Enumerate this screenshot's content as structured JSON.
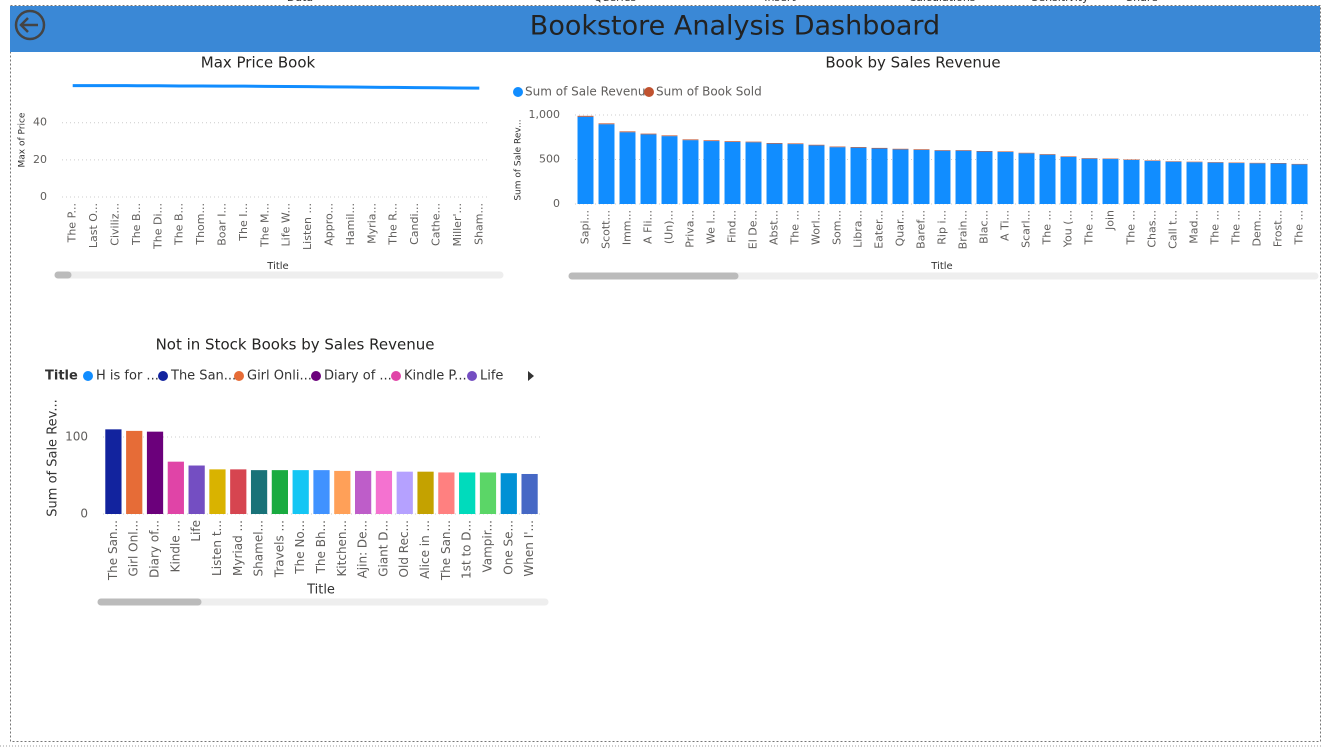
{
  "page_title": "Bookstore Analysis Dashboard",
  "ribbon": [
    "Data",
    "Queries",
    "Insert",
    "Calculations",
    "Sensitivity",
    "Share"
  ],
  "chart_data": [
    {
      "type": "line",
      "title": "Max Price Book",
      "x_label": "Title",
      "y_label": "Max of Price",
      "categories": [
        "The P...",
        "Last O...",
        "Civiliz...",
        "The B...",
        "The Di...",
        "The B...",
        "Thom...",
        "Boar I...",
        "The I...",
        "The M...",
        "Life W...",
        "Listen ...",
        "Appro...",
        "Hamil...",
        "Myria...",
        "The R...",
        "Candi...",
        "Cathe...",
        "Miller'...",
        "Sham..."
      ],
      "values": [
        60,
        60,
        60,
        59.9,
        59.9,
        59.8,
        59.8,
        59.7,
        59.7,
        59.6,
        59.5,
        59.4,
        59.3,
        59.2,
        59.1,
        59,
        58.9,
        58.8,
        58.7,
        58.6
      ],
      "color": "#118DFF",
      "ylim": [
        0,
        63
      ],
      "yticks": [
        0,
        20,
        40
      ],
      "grid": true
    },
    {
      "type": "stacked_bar",
      "title": "Book by Sales Revenue",
      "x_label": "Title",
      "y_label": "Sum of Sale Rev...",
      "categories": [
        "Sapi...",
        "Scott...",
        "Imm...",
        "A Fli...",
        "(Un)...",
        "Priva...",
        "We l...",
        "Find...",
        "El De...",
        "Abst...",
        "The ...",
        "Worl...",
        "Som...",
        "Libra...",
        "Eater...",
        "Quar...",
        "Baref...",
        "Rip i...",
        "Brain...",
        "Blac...",
        "A Ti...",
        "Scarl...",
        "The ...",
        "You (...",
        "The ...",
        "Join",
        "The ...",
        "Chas...",
        "Call t...",
        "Mad...",
        "The ...",
        "The ...",
        "Dem...",
        "Frost...",
        "The ..."
      ],
      "series": [
        {
          "name": "Sum of Sale Revenue",
          "color": "#118DFF",
          "values": [
            980,
            896,
            806,
            782,
            762,
            717,
            707,
            697,
            693,
            678,
            673,
            658,
            638,
            633,
            623,
            613,
            608,
            599,
            599,
            589,
            584,
            569,
            554,
            529,
            509,
            505,
            495,
            485,
            475,
            470,
            465,
            460,
            457,
            455,
            445
          ]
        },
        {
          "name": "Sum of Book Sold",
          "color": "#C0522F",
          "values": [
            10,
            9,
            9,
            8,
            8,
            8,
            8,
            8,
            7,
            7,
            7,
            7,
            7,
            7,
            7,
            7,
            7,
            6,
            6,
            6,
            6,
            6,
            6,
            6,
            6,
            5,
            5,
            5,
            5,
            5,
            5,
            5,
            5,
            5,
            5
          ]
        }
      ],
      "ylim": [
        0,
        1050
      ],
      "yticks": [
        0,
        500,
        {
          "value": 1000,
          "label": "1,000"
        }
      ],
      "grid": true
    },
    {
      "type": "bar",
      "title": "Not in Stock Books by Sales Revenue",
      "x_label": "Title",
      "y_label": "Sum of Sale Rev...",
      "legend_title": "Title",
      "legend": [
        {
          "name": "H is for ...",
          "color": "#118DFF"
        },
        {
          "name": "The San...",
          "color": "#12239E"
        },
        {
          "name": "Girl Onli...",
          "color": "#E66C37"
        },
        {
          "name": "Diary of ...",
          "color": "#6B007B"
        },
        {
          "name": "Kindle P...",
          "color": "#E044A7"
        },
        {
          "name": "Life",
          "color": "#744EC2"
        }
      ],
      "categories": [
        "The San...",
        "Girl Onl...",
        "Diary of...",
        "Kindle ...",
        "Life",
        "Listen t...",
        "Myriad ...",
        "Shamel...",
        "Travels ...",
        "The No...",
        "The Bh...",
        "Kitchen...",
        "Ajin: De...",
        "Giant D...",
        "Old Rec...",
        "Alice in ...",
        "The San...",
        "1st to D...",
        "Vampir...",
        "One Se...",
        "When I'..."
      ],
      "values": [
        110,
        108,
        107,
        68,
        63,
        58,
        58,
        57,
        57,
        57,
        57,
        56,
        56,
        56,
        55,
        55,
        54,
        54,
        54,
        53,
        52
      ],
      "colors": [
        "#12239E",
        "#E66C37",
        "#6B007B",
        "#E044A7",
        "#744EC2",
        "#D9B300",
        "#D64550",
        "#197278",
        "#1AAB40",
        "#15C6F4",
        "#4092FF",
        "#FFA058",
        "#BE5DC9",
        "#F472D0",
        "#B5A1FF",
        "#C4A200",
        "#FF8080",
        "#00DBBC",
        "#5BD667",
        "#0091D5",
        "#4668C5"
      ],
      "ylim": [
        0,
        115
      ],
      "yticks": [
        0,
        100
      ],
      "grid": true
    }
  ]
}
